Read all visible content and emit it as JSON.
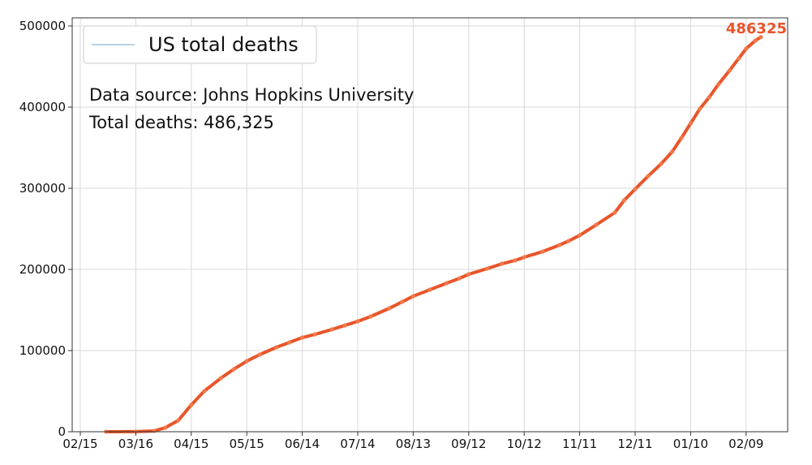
{
  "chart_data": {
    "type": "line",
    "title": "",
    "xlabel": "",
    "ylabel": "",
    "x_ticks": [
      "02/15",
      "03/16",
      "04/15",
      "05/15",
      "06/14",
      "07/14",
      "08/13",
      "09/12",
      "10/12",
      "11/11",
      "12/11",
      "01/10",
      "02/09"
    ],
    "y_ticks": [
      "0",
      "100000",
      "200000",
      "300000",
      "400000",
      "500000"
    ],
    "ylim": [
      0,
      510000
    ],
    "grid": true,
    "legend": {
      "placement": "top-left",
      "entries": [
        "US total deaths"
      ]
    },
    "annotations": {
      "source": "Data source: Johns Hopkins University",
      "total": "Total deaths: 486,325",
      "end_value_label": "486325"
    },
    "colors": {
      "series": "#e8552a",
      "legend_line": "#9ec4dc",
      "end_label": "#e8552a"
    },
    "series": [
      {
        "name": "US total deaths",
        "points": [
          [
            "02/29",
            0
          ],
          [
            "03/16",
            100
          ],
          [
            "03/26",
            1000
          ],
          [
            "04/01",
            5000
          ],
          [
            "04/08",
            14000
          ],
          [
            "04/15",
            33000
          ],
          [
            "04/22",
            50000
          ],
          [
            "05/01",
            66000
          ],
          [
            "05/08",
            77000
          ],
          [
            "05/15",
            87000
          ],
          [
            "05/22",
            95000
          ],
          [
            "05/31",
            104000
          ],
          [
            "06/07",
            110000
          ],
          [
            "06/14",
            116000
          ],
          [
            "06/21",
            120000
          ],
          [
            "06/30",
            126000
          ],
          [
            "07/07",
            131000
          ],
          [
            "07/14",
            136000
          ],
          [
            "07/21",
            142000
          ],
          [
            "07/31",
            152000
          ],
          [
            "08/07",
            160000
          ],
          [
            "08/13",
            167000
          ],
          [
            "08/22",
            175000
          ],
          [
            "08/31",
            183000
          ],
          [
            "09/07",
            189000
          ],
          [
            "09/12",
            194000
          ],
          [
            "09/22",
            201000
          ],
          [
            "09/30",
            207000
          ],
          [
            "10/07",
            211000
          ],
          [
            "10/12",
            215000
          ],
          [
            "10/22",
            222000
          ],
          [
            "10/31",
            230000
          ],
          [
            "11/05",
            235000
          ],
          [
            "11/11",
            242000
          ],
          [
            "11/20",
            255000
          ],
          [
            "11/30",
            270000
          ],
          [
            "12/05",
            285000
          ],
          [
            "12/11",
            299000
          ],
          [
            "12/18",
            315000
          ],
          [
            "12/25",
            330000
          ],
          [
            "12/31",
            345000
          ],
          [
            "01/05",
            362000
          ],
          [
            "01/10",
            380000
          ],
          [
            "01/15",
            398000
          ],
          [
            "01/20",
            412000
          ],
          [
            "01/25",
            428000
          ],
          [
            "01/31",
            445000
          ],
          [
            "02/05",
            460000
          ],
          [
            "02/09",
            472000
          ],
          [
            "02/14",
            482000
          ],
          [
            "02/17",
            486325
          ]
        ]
      }
    ]
  }
}
